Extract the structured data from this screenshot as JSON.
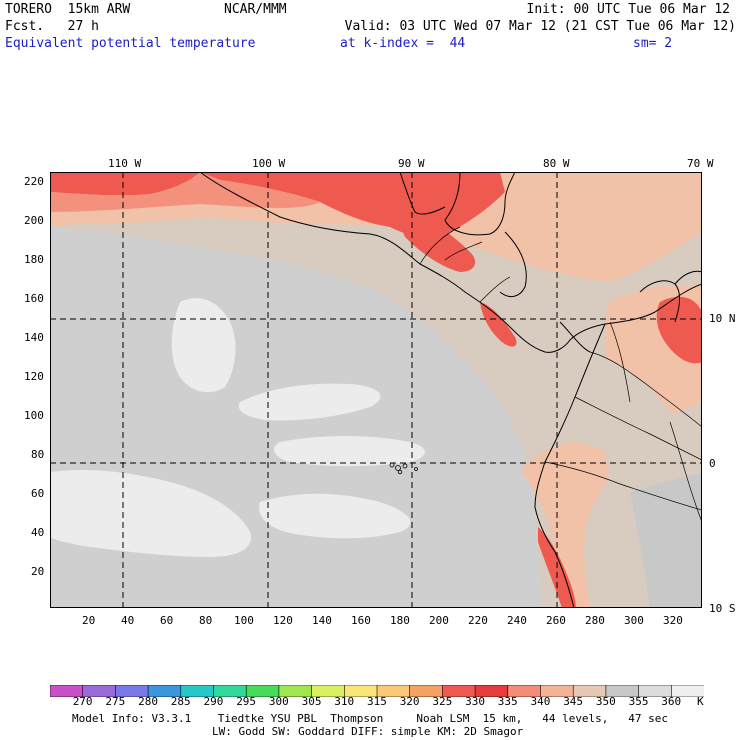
{
  "header": {
    "model": "TORERO  15km ARW",
    "center": "NCAR/MMM",
    "init": "Init: 00 UTC Tue 06 Mar 12",
    "forecast": "Fcst.   27 h",
    "valid": "Valid: 03 UTC Wed 07 Mar 12 (21 CST Tue 06 Mar 12)",
    "field": "Equivalent potential temperature",
    "level": "at k-index =  44",
    "smoothing": "sm= 2"
  },
  "map": {
    "lon_labels": [
      "110 W",
      "100 W",
      "90 W",
      "80 W",
      "70 W"
    ],
    "lat_labels": [
      "10 N",
      "0",
      "10 S"
    ],
    "y_ticks": [
      "220",
      "200",
      "180",
      "160",
      "140",
      "120",
      "100",
      "80",
      "60",
      "40",
      "20"
    ],
    "x_ticks": [
      "20",
      "40",
      "60",
      "80",
      "100",
      "120",
      "140",
      "160",
      "180",
      "200",
      "220",
      "240",
      "260",
      "280",
      "300",
      "320"
    ],
    "grid_x_max": 333,
    "grid_y_max": 223
  },
  "colorbar": {
    "labels": [
      "270",
      "275",
      "280",
      "285",
      "290",
      "295",
      "300",
      "305",
      "310",
      "315",
      "320",
      "325",
      "330",
      "335",
      "340",
      "345",
      "350",
      "355",
      "360"
    ],
    "unit": "K",
    "colors": [
      "#c850c8",
      "#9a6ad8",
      "#7878e6",
      "#3c96dc",
      "#28c8c8",
      "#32d79b",
      "#46dc5a",
      "#a0e650",
      "#dcf064",
      "#fae678",
      "#fac878",
      "#f5a064",
      "#ee5a50",
      "#e63c3c",
      "#f48c78",
      "#f5b496",
      "#e6c8b4",
      "#c8c8c8",
      "#dcdcdc",
      "#f0f0f0"
    ]
  },
  "footer": {
    "line1": "Model Info: V3.3.1    Tiedtke YSU PBL  Thompson     Noah LSM  15 km,   44 levels,   47 sec",
    "line2": "LW: Godd SW: Goddard DIFF: simple KM: 2D Smagor"
  }
}
